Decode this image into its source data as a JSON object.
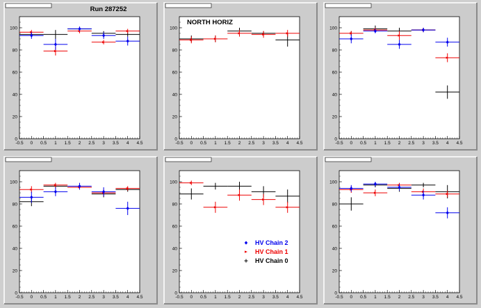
{
  "figure": {
    "annotations": {
      "run_label": "Run 287252",
      "region_label": "NORTH HORIZ"
    },
    "legend": [
      {
        "label": "HV Chain 2",
        "color": "#0000ee",
        "marker": "diamond"
      },
      {
        "label": "HV Chain 1",
        "color": "#ee0000",
        "marker": "arrow"
      },
      {
        "label": "HV Chain 0",
        "color": "#000000",
        "marker": "plus"
      }
    ]
  },
  "chart_data": [
    {
      "type": "scatter",
      "title": "",
      "xlim": [
        -0.5,
        4.5
      ],
      "ylim": [
        0,
        110
      ],
      "x_ticks": [
        "-0.5",
        "0",
        "0.5",
        "1",
        "1.5",
        "2",
        "2.5",
        "3",
        "3.5",
        "4",
        "4.5"
      ],
      "y_ticks": [
        "0",
        "20",
        "40",
        "60",
        "80",
        "100"
      ],
      "annotation": "Run 287252",
      "series": [
        {
          "name": "HV Chain 0",
          "color": "#000000",
          "x": [
            0,
            1,
            2,
            3,
            4
          ],
          "y": [
            94,
            94,
            99,
            95,
            94
          ],
          "err": [
            2,
            4,
            2,
            2,
            2
          ]
        },
        {
          "name": "HV Chain 1",
          "color": "#ee0000",
          "x": [
            0,
            1,
            2,
            3,
            4
          ],
          "y": [
            96,
            79,
            97,
            87,
            97
          ],
          "err": [
            2,
            4,
            2,
            2,
            2
          ]
        },
        {
          "name": "HV Chain 2",
          "color": "#0000ee",
          "x": [
            0,
            1,
            2,
            3,
            4
          ],
          "y": [
            93,
            85,
            99,
            93,
            88
          ],
          "err": [
            3,
            5,
            2,
            3,
            4
          ]
        }
      ]
    },
    {
      "type": "scatter",
      "title": "",
      "xlim": [
        -0.5,
        4.5
      ],
      "ylim": [
        0,
        110
      ],
      "x_ticks": [
        "-0.5",
        "0",
        "0.5",
        "1",
        "1.5",
        "2",
        "2.5",
        "3",
        "3.5",
        "4",
        "4.5"
      ],
      "y_ticks": [
        "0",
        "20",
        "40",
        "60",
        "80",
        "100"
      ],
      "annotation": "NORTH HORIZ",
      "series": [
        {
          "name": "HV Chain 0",
          "color": "#000000",
          "x": [
            0,
            1,
            2,
            3,
            4
          ],
          "y": [
            90,
            90,
            97,
            95,
            89
          ],
          "err": [
            3,
            3,
            3,
            2,
            6
          ]
        },
        {
          "name": "HV Chain 1",
          "color": "#ee0000",
          "x": [
            0,
            1,
            2,
            3,
            4
          ],
          "y": [
            89,
            90,
            95,
            94,
            95
          ],
          "err": [
            3,
            3,
            3,
            3,
            3
          ]
        },
        {
          "name": "HV Chain 2",
          "color": "#0000ee",
          "x": [],
          "y": [],
          "err": []
        }
      ]
    },
    {
      "type": "scatter",
      "title": "",
      "xlim": [
        -0.5,
        4.5
      ],
      "ylim": [
        0,
        110
      ],
      "x_ticks": [
        "-0.5",
        "0",
        "0.5",
        "1",
        "1.5",
        "2",
        "2.5",
        "3",
        "3.5",
        "4",
        "4.5"
      ],
      "y_ticks": [
        "0",
        "20",
        "40",
        "60",
        "80",
        "100"
      ],
      "series": [
        {
          "name": "HV Chain 0",
          "color": "#000000",
          "x": [
            0,
            1,
            2,
            3,
            4
          ],
          "y": [
            95,
            99,
            97,
            98,
            42
          ],
          "err": [
            2,
            3,
            3,
            2,
            6
          ]
        },
        {
          "name": "HV Chain 1",
          "color": "#ee0000",
          "x": [
            0,
            1,
            2,
            3,
            4
          ],
          "y": [
            95,
            98,
            93,
            98,
            73
          ],
          "err": [
            2,
            2,
            4,
            2,
            4
          ]
        },
        {
          "name": "HV Chain 2",
          "color": "#0000ee",
          "x": [
            0,
            1,
            2,
            3,
            4
          ],
          "y": [
            90,
            97,
            85,
            98,
            87
          ],
          "err": [
            4,
            2,
            4,
            2,
            4
          ]
        }
      ]
    },
    {
      "type": "scatter",
      "title": "",
      "xlim": [
        -0.5,
        4.5
      ],
      "ylim": [
        0,
        110
      ],
      "x_ticks": [
        "-0.5",
        "0",
        "0.5",
        "1",
        "1.5",
        "2",
        "2.5",
        "3",
        "3.5",
        "4",
        "4.5"
      ],
      "y_ticks": [
        "0",
        "20",
        "40",
        "60",
        "80",
        "100"
      ],
      "series": [
        {
          "name": "HV Chain 0",
          "color": "#000000",
          "x": [
            0,
            1,
            2,
            3,
            4
          ],
          "y": [
            82,
            96,
            95,
            89,
            93
          ],
          "err": [
            4,
            2,
            2,
            3,
            2
          ]
        },
        {
          "name": "HV Chain 1",
          "color": "#ee0000",
          "x": [
            0,
            1,
            2,
            3,
            4
          ],
          "y": [
            93,
            97,
            95,
            90,
            94
          ],
          "err": [
            3,
            2,
            2,
            3,
            2
          ]
        },
        {
          "name": "HV Chain 2",
          "color": "#0000ee",
          "x": [
            0,
            1,
            2,
            3,
            4
          ],
          "y": [
            86,
            91,
            96,
            91,
            76
          ],
          "err": [
            5,
            4,
            3,
            4,
            6
          ]
        }
      ]
    },
    {
      "type": "scatter",
      "title": "",
      "xlim": [
        -0.5,
        4.5
      ],
      "ylim": [
        0,
        110
      ],
      "x_ticks": [
        "-0.5",
        "0",
        "0.5",
        "1",
        "1.5",
        "2",
        "2.5",
        "3",
        "3.5",
        "4",
        "4.5"
      ],
      "y_ticks": [
        "0",
        "20",
        "40",
        "60",
        "80",
        "100"
      ],
      "series": [
        {
          "name": "HV Chain 0",
          "color": "#000000",
          "x": [
            0,
            1,
            2,
            3,
            4
          ],
          "y": [
            89,
            96,
            96,
            91,
            87
          ],
          "err": [
            5,
            3,
            4,
            5,
            6
          ]
        },
        {
          "name": "HV Chain 1",
          "color": "#ee0000",
          "x": [
            0,
            1,
            2,
            3,
            4
          ],
          "y": [
            99,
            77,
            88,
            84,
            77
          ],
          "err": [
            2,
            5,
            5,
            5,
            5
          ]
        },
        {
          "name": "HV Chain 2",
          "color": "#0000ee",
          "x": [],
          "y": [],
          "err": []
        }
      ]
    },
    {
      "type": "scatter",
      "title": "",
      "xlim": [
        -0.5,
        4.5
      ],
      "ylim": [
        0,
        110
      ],
      "x_ticks": [
        "-0.5",
        "0",
        "0.5",
        "1",
        "1.5",
        "2",
        "2.5",
        "3",
        "3.5",
        "4",
        "4.5"
      ],
      "y_ticks": [
        "0",
        "20",
        "40",
        "60",
        "80",
        "100"
      ],
      "series": [
        {
          "name": "HV Chain 0",
          "color": "#000000",
          "x": [
            0,
            1,
            2,
            3,
            4
          ],
          "y": [
            80,
            97,
            94,
            97,
            91
          ],
          "err": [
            6,
            2,
            3,
            2,
            6
          ]
        },
        {
          "name": "HV Chain 1",
          "color": "#ee0000",
          "x": [
            0,
            1,
            2,
            3,
            4
          ],
          "y": [
            93,
            90,
            97,
            91,
            89
          ],
          "err": [
            3,
            3,
            2,
            3,
            3
          ]
        },
        {
          "name": "HV Chain 2",
          "color": "#0000ee",
          "x": [
            0,
            1,
            2,
            3,
            4
          ],
          "y": [
            94,
            98,
            95,
            88,
            72
          ],
          "err": [
            3,
            2,
            3,
            4,
            5
          ]
        }
      ]
    }
  ]
}
